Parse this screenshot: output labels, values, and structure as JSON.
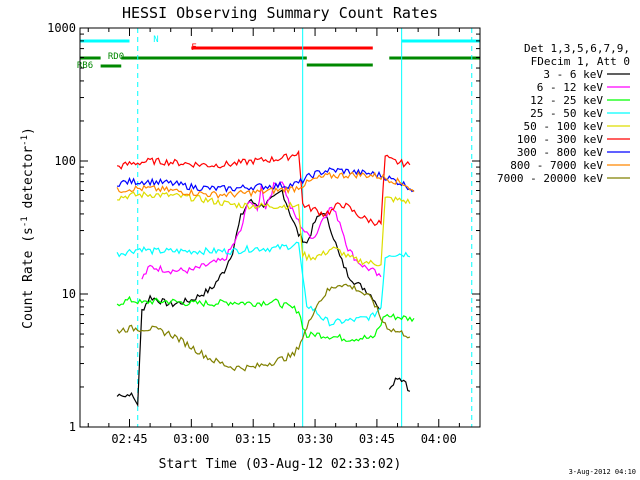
{
  "chart_data": {
    "type": "line",
    "title": "HESSI Observing Summary Count Rates",
    "xlabel": "Start Time (03-Aug-12 02:33:02)",
    "ylabel": "Count Rate (s^-1 detector^-1)",
    "ylabel_parts": {
      "main": "Count Rate (s",
      "sup1": "-1",
      "mid": " detector",
      "sup2": "-1",
      "end": ")"
    },
    "y_scale": "log",
    "ylim": [
      1,
      1000
    ],
    "xlim": [
      "02:33",
      "04:10"
    ],
    "x_ticks": [
      "02:45",
      "03:00",
      "03:15",
      "03:30",
      "03:45",
      "04:00"
    ],
    "y_ticks": [
      "1",
      "10",
      "100",
      "1000"
    ],
    "grid": false,
    "legend_placement": "right",
    "legend_header": [
      "Det 1,3,5,6,7,9,",
      "FDecim 1, Att 0"
    ],
    "series": [
      {
        "name": "3 - 6 keV",
        "color": "#000000",
        "t": [
          "02:33",
          "02:41",
          "02:42",
          "02:43",
          "02:44",
          "02:45",
          "02:47",
          "02:48",
          "02:50",
          "02:55",
          "03:00",
          "03:05",
          "03:08",
          "03:10",
          "03:12",
          "03:14",
          "03:17",
          "03:20",
          "03:22",
          "03:24",
          "03:26",
          "03:27",
          "03:28",
          "03:30",
          "03:32",
          "03:34",
          "03:36",
          "03:38",
          "03:40",
          "03:42",
          "03:44",
          "03:46",
          "03:47",
          "03:48",
          "03:50",
          "03:52",
          "03:53",
          "03:54",
          "03:55",
          "04:10"
        ],
        "y": [
          null,
          null,
          1.7,
          1.8,
          1.7,
          1.8,
          1.5,
          7.5,
          9.5,
          8.3,
          9.0,
          11,
          15,
          21,
          38,
          50,
          46,
          52,
          60,
          40,
          28,
          26,
          24,
          35,
          42,
          30,
          19,
          14,
          12,
          11,
          9.5,
          7.5,
          null,
          2.0,
          2.4,
          2.2,
          1.8,
          null,
          null,
          null
        ]
      },
      {
        "name": "6 - 12 keV",
        "color": "#ff00ff",
        "t": [
          "02:33",
          "02:41",
          "02:42",
          "02:45",
          "02:47",
          "02:48",
          "02:50",
          "02:55",
          "03:00",
          "03:05",
          "03:08",
          "03:10",
          "03:12",
          "03:14",
          "03:16",
          "03:17",
          "03:18",
          "03:20",
          "03:22",
          "03:24",
          "03:26",
          "03:28",
          "03:30",
          "03:32",
          "03:34",
          "03:36",
          "03:38",
          "03:40",
          "03:42",
          "03:44",
          "03:46",
          "03:47",
          "03:48",
          "03:52",
          "03:53",
          "03:54",
          "03:55",
          "04:10"
        ],
        "y": [
          null,
          null,
          null,
          null,
          null,
          13,
          16,
          15,
          15,
          17,
          18,
          23,
          30,
          52,
          42,
          65,
          45,
          65,
          72,
          45,
          35,
          28,
          27,
          38,
          45,
          35,
          22,
          18,
          16,
          15,
          13,
          null,
          null,
          null,
          null,
          null,
          null,
          null
        ]
      },
      {
        "name": "12 - 25 keV",
        "color": "#00ff00",
        "t": [
          "02:33",
          "02:41",
          "02:42",
          "02:45",
          "02:47",
          "02:48",
          "02:50",
          "02:55",
          "03:00",
          "03:05",
          "03:10",
          "03:15",
          "03:20",
          "03:26",
          "03:27",
          "03:28",
          "03:30",
          "03:34",
          "03:38",
          "03:42",
          "03:44",
          "03:46",
          "03:47",
          "03:48",
          "03:52",
          "03:53",
          "03:54",
          "03:55",
          "04:10"
        ],
        "y": [
          null,
          null,
          8.5,
          9.0,
          8.8,
          8.5,
          8.8,
          8.8,
          8.5,
          8.5,
          8.7,
          8.5,
          8.8,
          7.5,
          5.8,
          4.8,
          5.0,
          4.8,
          4.6,
          4.7,
          4.6,
          6.0,
          7.0,
          6.8,
          6.6,
          6.5,
          6.6,
          null,
          null
        ]
      },
      {
        "name": "25 - 50 keV",
        "color": "#00ffff",
        "t": [
          "02:33",
          "02:41",
          "02:42",
          "02:45",
          "02:48",
          "02:50",
          "02:55",
          "03:00",
          "03:05",
          "03:10",
          "03:15",
          "03:20",
          "03:24",
          "03:26",
          "03:27",
          "03:28",
          "03:30",
          "03:32",
          "03:34",
          "03:36",
          "03:40",
          "03:44",
          "03:46",
          "03:47",
          "03:48",
          "03:52",
          "03:53",
          "03:54",
          "03:55",
          "04:10"
        ],
        "y": [
          null,
          null,
          20,
          21,
          22,
          21,
          21,
          21,
          21,
          21,
          22,
          22,
          23,
          24,
          13,
          8.3,
          7.5,
          6.5,
          6.0,
          6.2,
          6.4,
          6.8,
          8.0,
          19,
          20,
          20,
          20,
          null,
          null,
          null
        ]
      },
      {
        "name": "50 - 100 keV",
        "color": "#dddd00",
        "t": [
          "02:33",
          "02:41",
          "02:42",
          "02:45",
          "02:50",
          "02:55",
          "03:00",
          "03:05",
          "03:10",
          "03:15",
          "03:20",
          "03:25",
          "03:26",
          "03:27",
          "03:28",
          "03:30",
          "03:32",
          "03:34",
          "03:36",
          "03:38",
          "03:40",
          "03:44",
          "03:46",
          "03:47",
          "03:48",
          "03:52",
          "03:53",
          "03:54",
          "03:55",
          "04:10"
        ],
        "y": [
          null,
          null,
          53,
          55,
          56,
          55,
          53,
          50,
          47,
          46,
          46,
          46,
          45,
          20,
          19,
          19,
          20,
          22,
          21,
          19,
          18,
          17,
          17,
          52,
          52,
          50,
          49,
          null,
          null,
          null
        ]
      },
      {
        "name": "100 - 300 keV",
        "color": "#ff0000",
        "t": [
          "02:33",
          "02:41",
          "02:42",
          "02:45",
          "02:50",
          "02:55",
          "03:00",
          "03:05",
          "03:10",
          "03:15",
          "03:20",
          "03:24",
          "03:26",
          "03:27",
          "03:28",
          "03:30",
          "03:32",
          "03:34",
          "03:36",
          "03:38",
          "03:40",
          "03:42",
          "03:44",
          "03:46",
          "03:47",
          "03:48",
          "03:50",
          "03:52",
          "03:53",
          "03:54",
          "03:55",
          "04:10"
        ],
        "y": [
          null,
          null,
          90,
          95,
          100,
          98,
          95,
          93,
          95,
          100,
          103,
          108,
          118,
          48,
          45,
          43,
          40,
          42,
          48,
          45,
          40,
          37,
          35,
          34,
          108,
          102,
          98,
          95,
          92,
          null,
          null,
          null
        ]
      },
      {
        "name": "300 - 800 keV",
        "color": "#0000ff",
        "t": [
          "02:33",
          "02:41",
          "02:42",
          "02:45",
          "02:50",
          "02:55",
          "03:00",
          "03:05",
          "03:10",
          "03:15",
          "03:20",
          "03:24",
          "03:26",
          "03:28",
          "03:30",
          "03:33",
          "03:36",
          "03:40",
          "03:44",
          "03:46",
          "03:48",
          "03:50",
          "03:52",
          "03:53",
          "03:54",
          "03:55",
          "04:10"
        ],
        "y": [
          null,
          null,
          68,
          70,
          70,
          68,
          64,
          62,
          62,
          64,
          65,
          66,
          68,
          75,
          80,
          85,
          85,
          82,
          80,
          78,
          74,
          70,
          66,
          63,
          60,
          null,
          null
        ]
      },
      {
        "name": "800 - 7000 keV",
        "color": "#ff8800",
        "t": [
          "02:33",
          "02:41",
          "02:42",
          "02:45",
          "02:50",
          "02:55",
          "03:00",
          "03:05",
          "03:10",
          "03:15",
          "03:20",
          "03:25",
          "03:28",
          "03:30",
          "03:33",
          "03:36",
          "03:40",
          "03:44",
          "03:46",
          "03:48",
          "03:50",
          "03:52",
          "03:53",
          "03:54",
          "03:55",
          "04:10"
        ],
        "y": [
          null,
          null,
          60,
          62,
          62,
          60,
          58,
          56,
          56,
          58,
          60,
          62,
          68,
          73,
          77,
          78,
          79,
          78,
          76,
          73,
          70,
          67,
          62,
          58,
          null,
          null
        ]
      },
      {
        "name": "7000 - 20000 keV",
        "color": "#808000",
        "t": [
          "02:33",
          "02:41",
          "02:42",
          "02:45",
          "02:50",
          "02:55",
          "03:00",
          "03:05",
          "03:10",
          "03:15",
          "03:20",
          "03:25",
          "03:28",
          "03:30",
          "03:33",
          "03:36",
          "03:40",
          "03:44",
          "03:46",
          "03:48",
          "03:50",
          "03:52",
          "03:53",
          "03:54",
          "03:55",
          "04:10"
        ],
        "y": [
          null,
          null,
          5.3,
          5.5,
          5.5,
          5.0,
          4.0,
          3.2,
          2.8,
          2.8,
          3.1,
          3.5,
          5.5,
          8.0,
          10.5,
          12.0,
          11.0,
          9.0,
          6.5,
          5.5,
          5.2,
          5.0,
          4.8,
          null,
          null,
          null
        ]
      }
    ],
    "flags": [
      {
        "label": "N",
        "color": "#00ffff",
        "segments": [
          [
            "02:33",
            "02:45"
          ],
          [
            "03:51",
            "04:10"
          ]
        ]
      },
      {
        "label": "F",
        "color": "#ff0000",
        "segments": [
          [
            "03:00",
            "03:44"
          ]
        ]
      },
      {
        "label": "RD0",
        "color": "#008800",
        "segments": [
          [
            "02:33",
            "02:38"
          ],
          [
            "02:43",
            "03:28"
          ],
          [
            "03:28",
            "03:44"
          ],
          [
            "03:48",
            "04:10"
          ]
        ]
      },
      {
        "label": "RB6",
        "color": "#008800",
        "segments": [
          [
            "02:38",
            "02:43"
          ]
        ]
      }
    ],
    "time_markers": [
      {
        "t": "02:33",
        "color": "#00ffff",
        "style": "solid"
      },
      {
        "t": "02:47",
        "color": "#00ffff",
        "style": "dashed"
      },
      {
        "t": "03:27",
        "color": "#00ffff",
        "style": "solid"
      },
      {
        "t": "03:51",
        "color": "#00ffff",
        "style": "solid"
      },
      {
        "t": "04:08",
        "color": "#00ffff",
        "style": "dashed"
      }
    ]
  },
  "footer": "3-Aug-2012 04:10"
}
